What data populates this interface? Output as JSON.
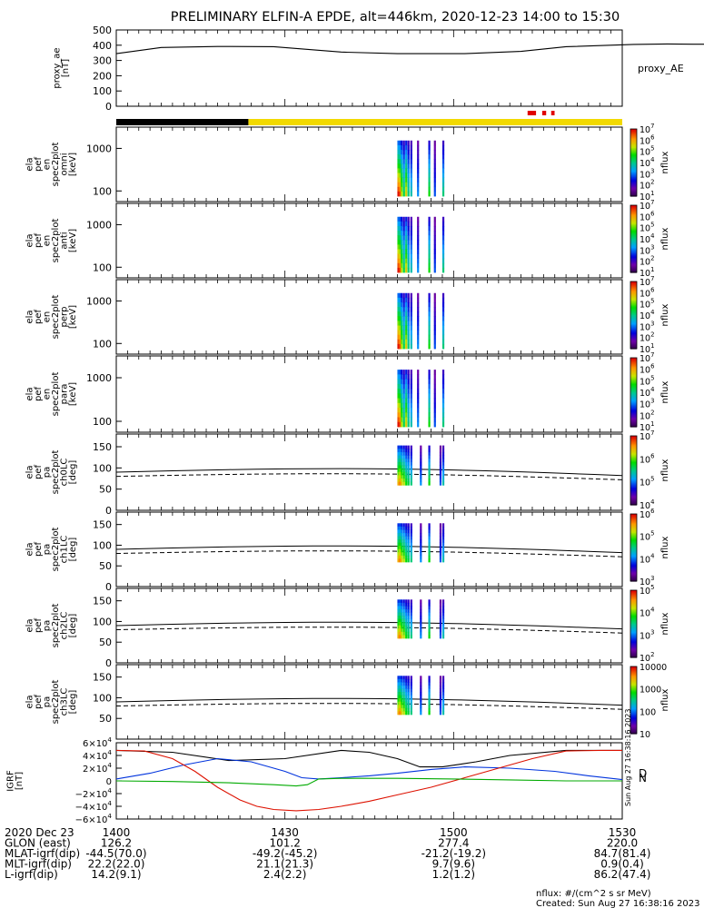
{
  "title": "PRELIMINARY ELFIN-A EPDE, alt=446km, 2020-12-23 14:00 to 15:30",
  "colors": {
    "status_black": "#000000",
    "status_yellow": "#f2d900",
    "status_red": "#e00000",
    "line": "#000000",
    "igrf_x": "#000000",
    "igrf_y": "#0033dd",
    "igrf_z": "#dd1100",
    "igrf_n": "#00aa00"
  },
  "x_axis": {
    "tick_labels": [
      "1400",
      "1430",
      "1500",
      "1530"
    ],
    "row_labels": [
      "2020 Dec 23",
      "GLON (east)",
      "MLAT-igrf(dip)",
      "MLT-igrf(dip)",
      "L-igrf(dip)"
    ],
    "row_values": [
      [
        "126.2",
        "101.2",
        "277.4",
        "220.0"
      ],
      [
        "-44.5(70.0)",
        "-49.2(-45.2)",
        "-21.2(-19.2)",
        "84.7(81.4)"
      ],
      [
        "22.2(22.0)",
        "21.1(21.3)",
        "9.7(9.6)",
        "0.9(0.4)"
      ],
      [
        "14.2(9.1)",
        "2.4(2.2)",
        "1.2(1.2)",
        "86.2(47.4)"
      ]
    ]
  },
  "footer": {
    "units": "nflux: #/(cm^2 s sr MeV)",
    "created": "Created: Sun Aug 27 16:38:16 2023",
    "side_stamp": "Sun Aug 27 16:38:16 2023"
  },
  "chart_data": [
    {
      "panel": "proxy_ae",
      "type": "line",
      "ylabel": "proxy_ae\n[nT]",
      "series_label": "proxy_AE",
      "y_ticks": [
        "500",
        "400",
        "300",
        "200",
        "100",
        "0"
      ],
      "ylim": [
        0,
        500
      ],
      "x_minutes": [
        0,
        8,
        18,
        28,
        40,
        50,
        62,
        72,
        80,
        92,
        98,
        110,
        120,
        136,
        156,
        175,
        190,
        210,
        225,
        245,
        258,
        272,
        284,
        300
      ],
      "values": [
        345,
        385,
        392,
        390,
        355,
        345,
        345,
        360,
        390,
        405,
        408,
        405,
        400,
        350,
        300,
        298,
        300,
        345,
        380,
        378,
        370,
        300,
        260,
        230
      ]
    },
    {
      "panel": "status_bar",
      "type": "bar",
      "segments": [
        {
          "from_min": 0,
          "to_min": 23.5,
          "state": "black"
        },
        {
          "from_min": 23.5,
          "to_min": 90,
          "state": "yellow"
        }
      ],
      "flags_min": [
        [
          36.0,
          37.5
        ],
        [
          38.6,
          39.3
        ],
        [
          40.2,
          40.8
        ]
      ]
    },
    {
      "panel": "omni",
      "type": "heatmap",
      "ylabel": "ela\npef\nen\nspec2plot\nomni\n[keV]",
      "y_ticks": [
        "1000",
        "100"
      ],
      "ylog": true,
      "colorbar_label": "nflux",
      "colorbar_ticks": [
        "10^7",
        "10^6",
        "10^5",
        "10^4",
        "10^3",
        "10^2",
        "10^1"
      ]
    },
    {
      "panel": "anti",
      "type": "heatmap",
      "ylabel": "ela\npef\nen\nspec2plot\nanti\n[keV]",
      "y_ticks": [
        "1000",
        "100"
      ],
      "ylog": true,
      "colorbar_label": "nflux",
      "colorbar_ticks": [
        "10^7",
        "10^6",
        "10^5",
        "10^4",
        "10^3",
        "10^2",
        "10^1"
      ]
    },
    {
      "panel": "perp",
      "type": "heatmap",
      "ylabel": "ela\npef\nen\nspec2plot\nperp\n[keV]",
      "y_ticks": [
        "1000",
        "100"
      ],
      "ylog": true,
      "colorbar_label": "nflux",
      "colorbar_ticks": [
        "10^7",
        "10^6",
        "10^5",
        "10^4",
        "10^3",
        "10^2",
        "10^1"
      ]
    },
    {
      "panel": "para",
      "type": "heatmap",
      "ylabel": "ela\npef\nen\nspec2plot\npara\n[keV]",
      "y_ticks": [
        "1000",
        "100"
      ],
      "ylog": true,
      "colorbar_label": "nflux",
      "colorbar_ticks": [
        "10^7",
        "10^6",
        "10^5",
        "10^4",
        "10^3",
        "10^2",
        "10^1"
      ]
    },
    {
      "panel": "ch0LC",
      "type": "heatmap",
      "ylabel": "ela\npef\npa\nspec2plot\nch0LC\n[deg]",
      "y_ticks": [
        "150",
        "100",
        "50",
        "0"
      ],
      "ylim": [
        0,
        180
      ],
      "colorbar_label": "nflux",
      "colorbar_ticks": [
        "10^7",
        "10^6",
        "10^5",
        "10^4"
      ]
    },
    {
      "panel": "ch1LC",
      "type": "heatmap",
      "ylabel": "ela\npef\npa\nspec2plot\nch1LC\n[deg]",
      "y_ticks": [
        "150",
        "100",
        "50",
        "0"
      ],
      "ylim": [
        0,
        180
      ],
      "colorbar_label": "nflux",
      "colorbar_ticks": [
        "10^6",
        "10^5",
        "10^4",
        "10^3"
      ]
    },
    {
      "panel": "ch2LC",
      "type": "heatmap",
      "ylabel": "ela\npef\npa\nspec2plot\nch2LC\n[deg]",
      "y_ticks": [
        "150",
        "100",
        "50",
        "0"
      ],
      "ylim": [
        0,
        180
      ],
      "colorbar_label": "nflux",
      "colorbar_ticks": [
        "10^5",
        "10^4",
        "10^3",
        "10^2"
      ]
    },
    {
      "panel": "ch3LC",
      "type": "heatmap",
      "ylabel": "ela\npef\npa\nspec2plot\nch3LC\n[deg]",
      "y_ticks": [
        "150",
        "100",
        "50"
      ],
      "ylim": [
        0,
        180
      ],
      "colorbar_label": "nflux",
      "colorbar_ticks": [
        "10000",
        "1000",
        "100",
        "10"
      ]
    },
    {
      "panel": "igrf",
      "type": "line",
      "ylabel": "IGRF\n[nT]",
      "y_ticks": [
        "6×10^4",
        "4×10^4",
        "2×10^4",
        "0",
        "−2×10^4",
        "−4×10^4",
        "−6×10^4"
      ],
      "ylim": [
        -60000,
        60000
      ],
      "legend": [
        "D",
        "N"
      ],
      "series": [
        {
          "x_minutes": [
            0,
            10,
            20,
            30,
            40,
            45,
            50,
            54,
            58,
            64,
            70,
            80,
            86,
            90
          ],
          "values": [
            48000,
            45000,
            32000,
            35000,
            48000,
            45000,
            35000,
            22000,
            22000,
            30000,
            40000,
            48000,
            48000,
            48000
          ]
        },
        {
          "x_minutes": [
            0,
            6,
            12,
            18,
            24,
            30,
            33,
            36,
            40,
            45,
            50,
            56,
            62,
            70,
            78,
            84,
            90
          ],
          "values": [
            3000,
            12000,
            25000,
            35000,
            30000,
            15000,
            5000,
            3000,
            5000,
            8000,
            12000,
            18000,
            22000,
            20000,
            15000,
            8000,
            2000
          ]
        },
        {
          "x_minutes": [
            0,
            5,
            10,
            14,
            18,
            22,
            25,
            28,
            32,
            36,
            40,
            45,
            50,
            56,
            62,
            68,
            74,
            80,
            86,
            90
          ],
          "values": [
            48000,
            47000,
            35000,
            15000,
            -10000,
            -30000,
            -40000,
            -45000,
            -47000,
            -45000,
            -40000,
            -32000,
            -22000,
            -10000,
            5000,
            20000,
            35000,
            47000,
            48000,
            48000
          ]
        },
        {
          "x_minutes": [
            0,
            10,
            20,
            28,
            32,
            34,
            36,
            40,
            50,
            60,
            70,
            80,
            90
          ],
          "values": [
            0,
            -1000,
            -3000,
            -6000,
            -8000,
            -6000,
            3000,
            4000,
            4000,
            3000,
            1500,
            0,
            0
          ]
        }
      ]
    }
  ]
}
